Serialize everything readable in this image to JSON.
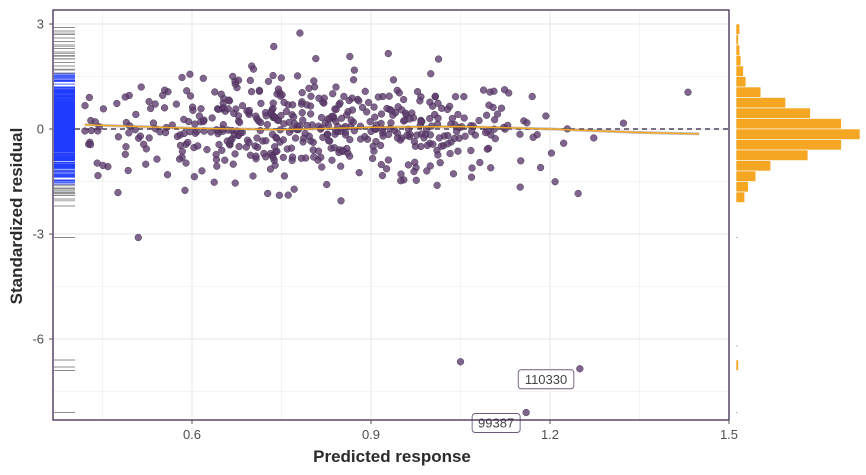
{
  "chart_data": {
    "type": "scatter",
    "xlabel": "Predicted response",
    "ylabel": "Standardized residual",
    "xlim": [
      0.35,
      1.5
    ],
    "ylim": [
      -8.5,
      3.2
    ],
    "x_ticks": [
      0.6,
      0.9,
      1.2,
      1.5
    ],
    "x_tick_labels": [
      "0.6",
      "0.9",
      "1.2",
      "1.5"
    ],
    "y_ticks": [
      3,
      0,
      -3,
      -6
    ],
    "y_tick_labels": [
      "3",
      "0",
      "-3",
      "-6"
    ],
    "grid": true,
    "reference_line": {
      "y": 0,
      "style": "dashed"
    },
    "smooth_line": {
      "x": [
        0.42,
        0.6,
        0.75,
        0.9,
        1.05,
        1.2,
        1.35,
        1.45
      ],
      "y": [
        0.12,
        0.02,
        -0.02,
        0.05,
        0.07,
        0.0,
        -0.1,
        -0.14
      ]
    },
    "labeled_points": [
      {
        "x": 1.25,
        "y": -6.85,
        "label": "110330"
      },
      {
        "x": 1.16,
        "y": -8.1,
        "label": "99387"
      },
      {
        "x": 1.05,
        "y": -6.65,
        "label": ""
      },
      {
        "x": 0.51,
        "y": -3.1,
        "label": ""
      }
    ],
    "rug_y": [
      2.9,
      2.8,
      2.7,
      2.6,
      2.5,
      2.4,
      2.3,
      2.2,
      2.1,
      2.0,
      1.9,
      1.8,
      1.7,
      1.6,
      -1.6,
      -1.7,
      -1.8,
      -1.9,
      -2.0,
      -2.2,
      -3.1,
      -6.6,
      -6.8,
      -6.9,
      -8.1
    ],
    "histogram": {
      "bins": [
        {
          "y0": 2.7,
          "y1": 3.0,
          "count": 3
        },
        {
          "y0": 2.4,
          "y1": 2.7,
          "count": 2
        },
        {
          "y0": 2.1,
          "y1": 2.4,
          "count": 3
        },
        {
          "y0": 1.8,
          "y1": 2.1,
          "count": 4
        },
        {
          "y0": 1.5,
          "y1": 1.8,
          "count": 6
        },
        {
          "y0": 1.2,
          "y1": 1.5,
          "count": 8
        },
        {
          "y0": 0.9,
          "y1": 1.2,
          "count": 20
        },
        {
          "y0": 0.6,
          "y1": 0.9,
          "count": 40
        },
        {
          "y0": 0.3,
          "y1": 0.6,
          "count": 60
        },
        {
          "y0": 0.0,
          "y1": 0.3,
          "count": 85
        },
        {
          "y0": -0.3,
          "y1": 0.0,
          "count": 100
        },
        {
          "y0": -0.6,
          "y1": -0.3,
          "count": 85
        },
        {
          "y0": -0.9,
          "y1": -0.6,
          "count": 58
        },
        {
          "y0": -1.2,
          "y1": -0.9,
          "count": 28
        },
        {
          "y0": -1.5,
          "y1": -1.2,
          "count": 16
        },
        {
          "y0": -1.8,
          "y1": -1.5,
          "count": 10
        },
        {
          "y0": -2.1,
          "y1": -1.8,
          "count": 7
        },
        {
          "y0": -6.9,
          "y1": -6.6,
          "count": 2
        }
      ]
    },
    "colors": {
      "points": "#5b3a6b",
      "smooth": "#f5a623",
      "reference": "#2b1a3a",
      "rug_dense": "#1f3cff",
      "rug_sparse": "#8c8c8c",
      "histogram": "#f5a623",
      "frame": "#3d2b4f"
    }
  }
}
